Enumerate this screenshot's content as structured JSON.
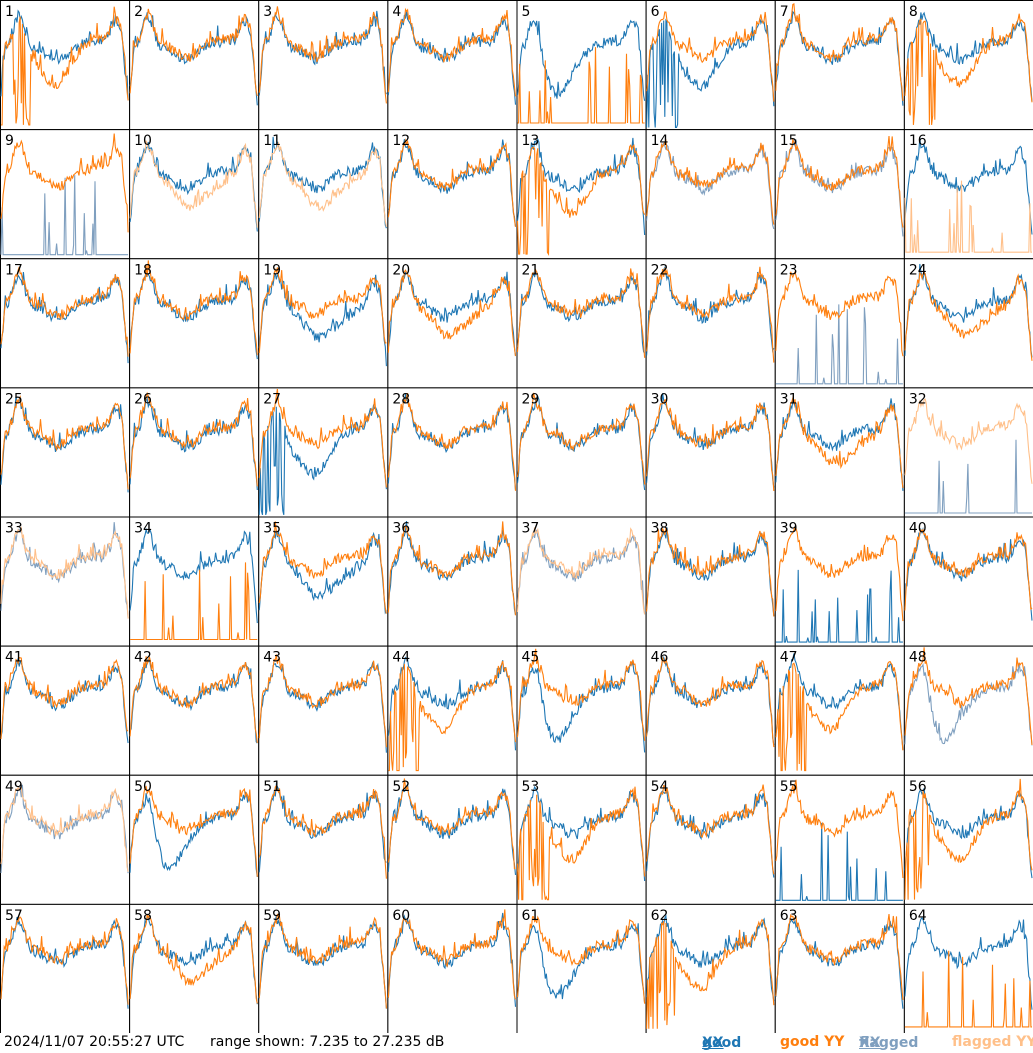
{
  "chart_data": {
    "type": "line",
    "panel_count": 64,
    "grid": "8x8",
    "y_range_db": [
      7.235,
      27.235
    ],
    "series": [
      {
        "name": "good XX",
        "color": "#1f77b4"
      },
      {
        "name": "good YY",
        "color": "#ff7f0e"
      },
      {
        "name": "flagged XX",
        "color": "#7f9fbf"
      },
      {
        "name": "flagged YY",
        "color": "#ffc08a"
      }
    ],
    "panels": [
      {
        "label": "1",
        "xx": "good",
        "yy": "good",
        "xx_shape": "normal",
        "yy_shape": "spiky_drop"
      },
      {
        "label": "2",
        "xx": "good",
        "yy": "good",
        "xx_shape": "normal",
        "yy_shape": "normal"
      },
      {
        "label": "3",
        "xx": "good",
        "yy": "good",
        "xx_shape": "normal",
        "yy_shape": "normal"
      },
      {
        "label": "4",
        "xx": "good",
        "yy": "good",
        "xx_shape": "normal",
        "yy_shape": "normal"
      },
      {
        "label": "5",
        "xx": "good",
        "yy": "good",
        "xx_shape": "dip",
        "yy_shape": "dead"
      },
      {
        "label": "6",
        "xx": "good",
        "yy": "good",
        "xx_shape": "spiky_drop",
        "yy_shape": "normal"
      },
      {
        "label": "7",
        "xx": "good",
        "yy": "good",
        "xx_shape": "normal",
        "yy_shape": "normal"
      },
      {
        "label": "8",
        "xx": "good",
        "yy": "good",
        "xx_shape": "normal",
        "yy_shape": "spiky_drop"
      },
      {
        "label": "9",
        "xx": "flagged",
        "yy": "good",
        "xx_shape": "dead",
        "yy_shape": "normal"
      },
      {
        "label": "10",
        "xx": "good",
        "yy": "flagged",
        "xx_shape": "normal",
        "yy_shape": "low"
      },
      {
        "label": "11",
        "xx": "good",
        "yy": "flagged",
        "xx_shape": "normal",
        "yy_shape": "low"
      },
      {
        "label": "12",
        "xx": "good",
        "yy": "good",
        "xx_shape": "normal",
        "yy_shape": "normal"
      },
      {
        "label": "13",
        "xx": "good",
        "yy": "good",
        "xx_shape": "normal",
        "yy_shape": "spiky_drop"
      },
      {
        "label": "14",
        "xx": "flagged",
        "yy": "good",
        "xx_shape": "normal",
        "yy_shape": "normal"
      },
      {
        "label": "15",
        "xx": "flagged",
        "yy": "good",
        "xx_shape": "normal",
        "yy_shape": "normal"
      },
      {
        "label": "16",
        "xx": "good",
        "yy": "flagged",
        "xx_shape": "normal",
        "yy_shape": "dead"
      },
      {
        "label": "17",
        "xx": "good",
        "yy": "good",
        "xx_shape": "normal",
        "yy_shape": "normal"
      },
      {
        "label": "18",
        "xx": "good",
        "yy": "good",
        "xx_shape": "normal",
        "yy_shape": "normal"
      },
      {
        "label": "19",
        "xx": "good",
        "yy": "good",
        "xx_shape": "low",
        "yy_shape": "normal"
      },
      {
        "label": "20",
        "xx": "good",
        "yy": "good",
        "xx_shape": "normal",
        "yy_shape": "low"
      },
      {
        "label": "21",
        "xx": "good",
        "yy": "good",
        "xx_shape": "normal",
        "yy_shape": "normal"
      },
      {
        "label": "22",
        "xx": "good",
        "yy": "good",
        "xx_shape": "normal",
        "yy_shape": "normal"
      },
      {
        "label": "23",
        "xx": "flagged",
        "yy": "good",
        "xx_shape": "dead",
        "yy_shape": "normal"
      },
      {
        "label": "24",
        "xx": "good",
        "yy": "good",
        "xx_shape": "normal",
        "yy_shape": "low"
      },
      {
        "label": "25",
        "xx": "good",
        "yy": "good",
        "xx_shape": "normal",
        "yy_shape": "normal"
      },
      {
        "label": "26",
        "xx": "good",
        "yy": "good",
        "xx_shape": "normal",
        "yy_shape": "normal"
      },
      {
        "label": "27",
        "xx": "good",
        "yy": "good",
        "xx_shape": "spiky_drop",
        "yy_shape": "normal"
      },
      {
        "label": "28",
        "xx": "good",
        "yy": "good",
        "xx_shape": "normal",
        "yy_shape": "normal"
      },
      {
        "label": "29",
        "xx": "good",
        "yy": "good",
        "xx_shape": "normal",
        "yy_shape": "normal"
      },
      {
        "label": "30",
        "xx": "good",
        "yy": "good",
        "xx_shape": "normal",
        "yy_shape": "normal"
      },
      {
        "label": "31",
        "xx": "good",
        "yy": "good",
        "xx_shape": "normal",
        "yy_shape": "low"
      },
      {
        "label": "32",
        "xx": "flagged",
        "yy": "flagged",
        "xx_shape": "dead",
        "yy_shape": "normal"
      },
      {
        "label": "33",
        "xx": "flagged",
        "yy": "flagged",
        "xx_shape": "normal",
        "yy_shape": "normal"
      },
      {
        "label": "34",
        "xx": "good",
        "yy": "good",
        "xx_shape": "normal",
        "yy_shape": "dead"
      },
      {
        "label": "35",
        "xx": "good",
        "yy": "good",
        "xx_shape": "low",
        "yy_shape": "normal"
      },
      {
        "label": "36",
        "xx": "good",
        "yy": "good",
        "xx_shape": "normal",
        "yy_shape": "normal"
      },
      {
        "label": "37",
        "xx": "flagged",
        "yy": "flagged",
        "xx_shape": "normal",
        "yy_shape": "normal"
      },
      {
        "label": "38",
        "xx": "good",
        "yy": "good",
        "xx_shape": "normal",
        "yy_shape": "normal"
      },
      {
        "label": "39",
        "xx": "good",
        "yy": "good",
        "xx_shape": "dead",
        "yy_shape": "normal"
      },
      {
        "label": "40",
        "xx": "good",
        "yy": "good",
        "xx_shape": "normal",
        "yy_shape": "normal"
      },
      {
        "label": "41",
        "xx": "good",
        "yy": "good",
        "xx_shape": "normal",
        "yy_shape": "normal"
      },
      {
        "label": "42",
        "xx": "good",
        "yy": "good",
        "xx_shape": "normal",
        "yy_shape": "normal"
      },
      {
        "label": "43",
        "xx": "good",
        "yy": "good",
        "xx_shape": "normal",
        "yy_shape": "normal"
      },
      {
        "label": "44",
        "xx": "good",
        "yy": "good",
        "xx_shape": "normal",
        "yy_shape": "spiky_drop"
      },
      {
        "label": "45",
        "xx": "good",
        "yy": "good",
        "xx_shape": "dip",
        "yy_shape": "normal"
      },
      {
        "label": "46",
        "xx": "good",
        "yy": "good",
        "xx_shape": "normal",
        "yy_shape": "normal"
      },
      {
        "label": "47",
        "xx": "good",
        "yy": "good",
        "xx_shape": "normal",
        "yy_shape": "spiky_drop"
      },
      {
        "label": "48",
        "xx": "flagged",
        "yy": "good",
        "xx_shape": "dip",
        "yy_shape": "normal"
      },
      {
        "label": "49",
        "xx": "flagged",
        "yy": "flagged",
        "xx_shape": "normal",
        "yy_shape": "normal"
      },
      {
        "label": "50",
        "xx": "good",
        "yy": "good",
        "xx_shape": "dip",
        "yy_shape": "normal"
      },
      {
        "label": "51",
        "xx": "good",
        "yy": "good",
        "xx_shape": "normal",
        "yy_shape": "normal"
      },
      {
        "label": "52",
        "xx": "good",
        "yy": "good",
        "xx_shape": "normal",
        "yy_shape": "normal"
      },
      {
        "label": "53",
        "xx": "good",
        "yy": "good",
        "xx_shape": "normal",
        "yy_shape": "spiky_drop"
      },
      {
        "label": "54",
        "xx": "good",
        "yy": "good",
        "xx_shape": "normal",
        "yy_shape": "normal"
      },
      {
        "label": "55",
        "xx": "good",
        "yy": "good",
        "xx_shape": "dead",
        "yy_shape": "normal"
      },
      {
        "label": "56",
        "xx": "good",
        "yy": "good",
        "xx_shape": "normal",
        "yy_shape": "spiky_drop"
      },
      {
        "label": "57",
        "xx": "good",
        "yy": "good",
        "xx_shape": "normal",
        "yy_shape": "normal"
      },
      {
        "label": "58",
        "xx": "good",
        "yy": "good",
        "xx_shape": "normal",
        "yy_shape": "low"
      },
      {
        "label": "59",
        "xx": "good",
        "yy": "good",
        "xx_shape": "normal",
        "yy_shape": "normal"
      },
      {
        "label": "60",
        "xx": "good",
        "yy": "good",
        "xx_shape": "normal",
        "yy_shape": "normal"
      },
      {
        "label": "61",
        "xx": "good",
        "yy": "good",
        "xx_shape": "dip",
        "yy_shape": "normal"
      },
      {
        "label": "62",
        "xx": "good",
        "yy": "good",
        "xx_shape": "normal",
        "yy_shape": "spiky_drop"
      },
      {
        "label": "63",
        "xx": "good",
        "yy": "good",
        "xx_shape": "normal",
        "yy_shape": "normal"
      },
      {
        "label": "64",
        "xx": "good",
        "yy": "good",
        "xx_shape": "normal",
        "yy_shape": "dead"
      }
    ]
  },
  "footer": {
    "timestamp": "2024/11/07 20:55:27 UTC",
    "range_text": "range shown: 7.235 to 27.235 dB",
    "legend": {
      "good_prefix": "good ",
      "good_xx": "XX",
      "good_yy": "good YY",
      "flagged_prefix": "flagged ",
      "flagged_xx": "XX",
      "flagged_yy": "flagged YY"
    }
  }
}
